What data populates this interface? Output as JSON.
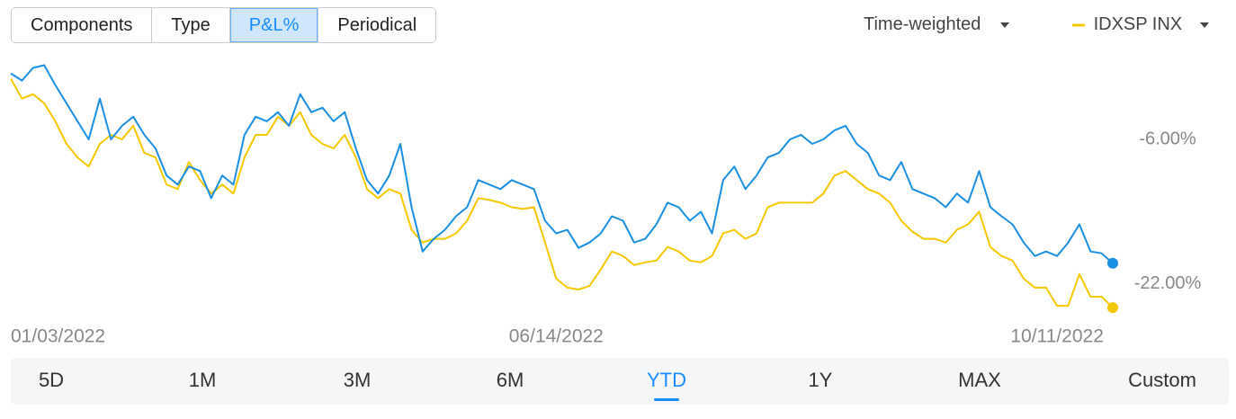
{
  "toolbar": {
    "tabs": [
      "Components",
      "Type",
      "P&L%",
      "Periodical"
    ],
    "active_tab": 2,
    "weighting": "Time-weighted"
  },
  "chart_data": {
    "type": "line",
    "categories": [
      "01/03/2022",
      null,
      null,
      null,
      null,
      null,
      null,
      null,
      null,
      null,
      null,
      null,
      null,
      null,
      null,
      null,
      null,
      null,
      null,
      null,
      null,
      null,
      null,
      null,
      null,
      null,
      null,
      null,
      null,
      null,
      null,
      null,
      null,
      null,
      null,
      null,
      null,
      null,
      null,
      null,
      null,
      null,
      null,
      null,
      null,
      null,
      null,
      null,
      null,
      "06/14/2022",
      null,
      null,
      null,
      null,
      null,
      null,
      null,
      null,
      null,
      null,
      null,
      null,
      null,
      null,
      null,
      null,
      null,
      null,
      null,
      null,
      null,
      null,
      null,
      null,
      null,
      null,
      null,
      null,
      null,
      null,
      null,
      null,
      null,
      null,
      null,
      null,
      null,
      null,
      null,
      null,
      null,
      null,
      null,
      null,
      "10/11/2022",
      null,
      null,
      null,
      null,
      null
    ],
    "series": [
      {
        "color": "#1a8fe3",
        "values": [
          1.3,
          0.5,
          1.9,
          2.2,
          0.0,
          -2.0,
          -4.0,
          -6.0,
          -1.5,
          -6.0,
          -4.5,
          -3.5,
          -5.5,
          -7.0,
          -10.0,
          -11.0,
          -9.0,
          -9.5,
          -12.5,
          -10.0,
          -11.0,
          -5.5,
          -3.5,
          -4.0,
          -3.0,
          -4.5,
          -1.0,
          -3.0,
          -2.5,
          -4.0,
          -3.0,
          -7.0,
          -10.5,
          -12.0,
          -10.0,
          -6.5,
          -13.5,
          -18.4,
          -17.0,
          -16.0,
          -14.5,
          -13.5,
          -10.5,
          -11.0,
          -11.5,
          -10.5,
          -11.0,
          -11.5,
          -15.0,
          -16.4,
          -16.0,
          -18.0,
          -17.4,
          -16.4,
          -14.5,
          -15.0,
          -17.4,
          -17.0,
          -15.4,
          -13.0,
          -13.5,
          -15.0,
          -14.0,
          -16.4,
          -10.5,
          -9.0,
          -11.5,
          -10.0,
          -8.0,
          -7.5,
          -6.0,
          -5.5,
          -6.5,
          -6.0,
          -5.0,
          -4.5,
          -6.5,
          -7.5,
          -10.0,
          -10.5,
          -8.5,
          -11.5,
          -12.0,
          -12.5,
          -13.5,
          -12.0,
          -13.0,
          -9.5,
          -13.5,
          -14.5,
          -15.4,
          -17.4,
          -18.9,
          -18.4,
          -18.9,
          -17.4,
          -15.4,
          -18.4,
          -18.6,
          -19.7
        ]
      },
      {
        "name": "IDXSP INX",
        "color": "#f5c800",
        "values": [
          0.7,
          -1.5,
          -1.0,
          -2.0,
          -4.0,
          -6.5,
          -8.0,
          -9.0,
          -6.5,
          -5.5,
          -6.0,
          -4.5,
          -7.5,
          -8.0,
          -11.0,
          -11.5,
          -8.5,
          -10.5,
          -12.0,
          -11.0,
          -12.0,
          -8.0,
          -5.5,
          -5.5,
          -3.5,
          -4.5,
          -3.0,
          -5.5,
          -6.5,
          -7.0,
          -5.5,
          -8.0,
          -11.5,
          -12.5,
          -11.5,
          -12.0,
          -16.0,
          -17.4,
          -17.0,
          -17.0,
          -16.4,
          -15.0,
          -12.5,
          -12.7,
          -13.0,
          -13.5,
          -13.7,
          -13.5,
          -17.4,
          -21.4,
          -22.4,
          -22.6,
          -22.2,
          -20.4,
          -18.4,
          -18.9,
          -19.9,
          -19.6,
          -19.4,
          -17.9,
          -18.4,
          -19.4,
          -19.6,
          -18.9,
          -16.4,
          -16.0,
          -17.0,
          -16.4,
          -13.5,
          -13.0,
          -13.0,
          -13.0,
          -13.0,
          -12.0,
          -10.0,
          -9.5,
          -10.5,
          -11.5,
          -12.0,
          -13.0,
          -15.0,
          -16.2,
          -17.0,
          -17.0,
          -17.4,
          -16.0,
          -15.4,
          -14.0,
          -17.9,
          -18.9,
          -19.4,
          -21.4,
          -22.4,
          -22.4,
          -24.4,
          -24.4,
          -20.9,
          -23.4,
          -23.4,
          -24.6
        ]
      }
    ],
    "ylim": [
      -25,
      2.5
    ],
    "yticks": [
      {
        "value": -6,
        "label": "-6.00%"
      },
      {
        "value": -22,
        "label": "-22.00%"
      }
    ]
  },
  "ranges": {
    "items": [
      "5D",
      "1M",
      "3M",
      "6M",
      "YTD",
      "1Y",
      "MAX",
      "Custom"
    ],
    "active": 4
  }
}
